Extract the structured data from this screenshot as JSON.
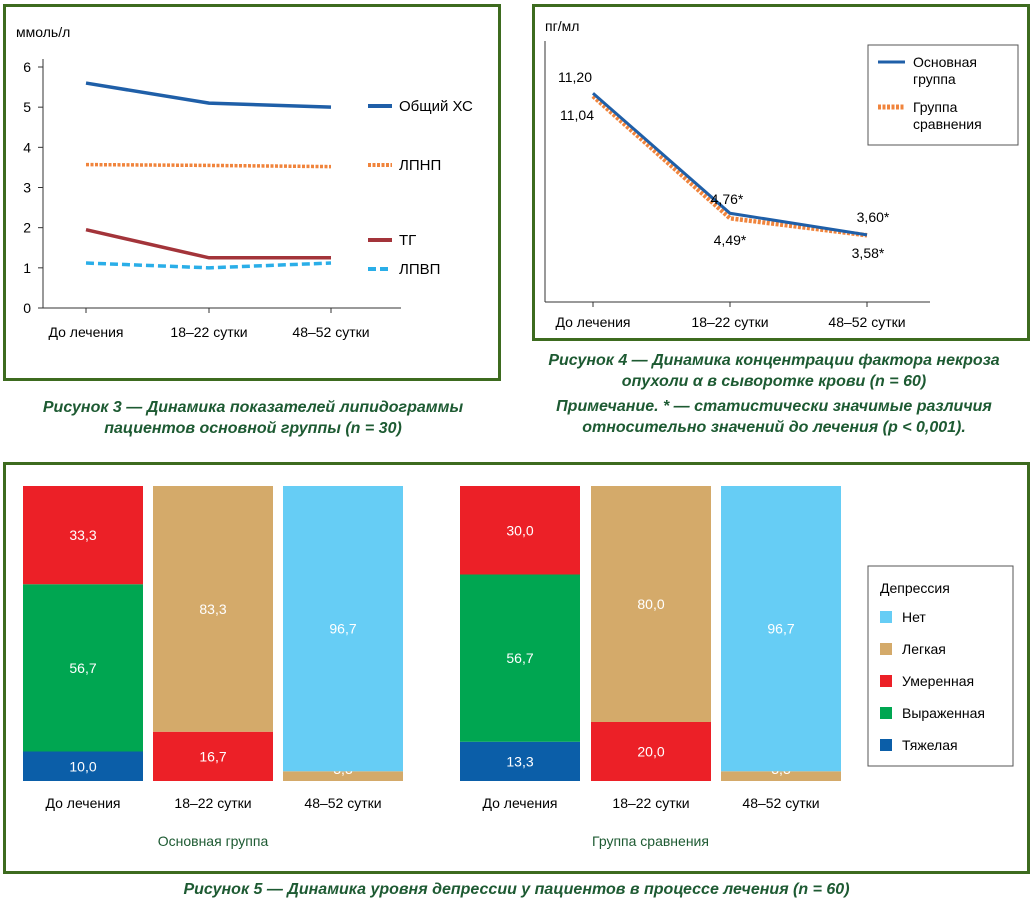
{
  "colors": {
    "frame": "#3d6b1f",
    "caption": "#1d5a32",
    "obshchiy_hs": "#1f5fa8",
    "lpnp": "#f0843c",
    "tg": "#a3343a",
    "lpvp": "#2aaee8",
    "net": "#66cdf5",
    "legkaya": "#d4aa6a",
    "umerennaya": "#ec2027",
    "vyrazhennaya": "#00a651",
    "tyazhelaya": "#0b5ea8"
  },
  "figure3": {
    "caption": "Рисунок 3 — Динамика показателей липидограммы пациентов основной группы (n = 30)",
    "chart_data": {
      "type": "line",
      "title": "",
      "ylabel": "ммоль/л",
      "xlabel": "",
      "categories": [
        "До лечения",
        "18–22 сутки",
        "48–52 сутки"
      ],
      "yticks": [
        "0",
        "1",
        "2",
        "3",
        "4",
        "5",
        "6"
      ],
      "ylim": [
        0,
        6
      ],
      "grid": false,
      "legend": "right",
      "series": [
        {
          "name": "Общий ХС",
          "values": [
            5.6,
            5.1,
            5.0
          ],
          "color": "#1f5fa8",
          "style": "solid"
        },
        {
          "name": "ЛПНП",
          "values": [
            3.57,
            3.55,
            3.52
          ],
          "color": "#f0843c",
          "style": "dotted"
        },
        {
          "name": "ТГ",
          "values": [
            1.95,
            1.25,
            1.25
          ],
          "color": "#a3343a",
          "style": "solid"
        },
        {
          "name": "ЛПВП",
          "values": [
            1.12,
            1.0,
            1.12
          ],
          "color": "#2aaee8",
          "style": "dashed"
        }
      ]
    }
  },
  "figure4": {
    "caption": "Рисунок 4 — Динамика концентрации фактора некроза опухоли α в сыворотке крови (n = 60)",
    "note": "Примечание. * — статистически значимые различия относительно значений до лечения (p < 0,001).",
    "chart_data": {
      "type": "line",
      "title": "",
      "ylabel": "пг/мл",
      "xlabel": "",
      "categories": [
        "До лечения",
        "18–22 сутки",
        "48–52 сутки"
      ],
      "ylim": [
        0,
        12.5
      ],
      "grid": false,
      "legend": "top-right",
      "series": [
        {
          "name": "Основная группа",
          "name_lines": [
            "Основная",
            "группа"
          ],
          "values": [
            11.2,
            4.76,
            3.6
          ],
          "labels": [
            "11,20",
            "4,76*",
            "3,60*"
          ],
          "color": "#1f5fa8",
          "style": "solid"
        },
        {
          "name": "Группа сравнения",
          "name_lines": [
            "Группа",
            "сравнения"
          ],
          "values": [
            11.04,
            4.49,
            3.58
          ],
          "labels": [
            "11,04",
            "4,49*",
            "3,58*"
          ],
          "color": "#f0843c",
          "style": "dotted"
        }
      ]
    }
  },
  "figure5": {
    "caption": "Рисунок 5 — Динамика уровня депрессии у пациентов в процессе лечения (n = 60)",
    "legend_title": "Депрессия",
    "chart_data": {
      "type": "bar",
      "stacked": true,
      "title": "",
      "legend": "right",
      "levels": [
        {
          "name": "Нет",
          "color": "#66cdf5"
        },
        {
          "name": "Легкая",
          "color": "#d4aa6a"
        },
        {
          "name": "Умеренная",
          "color": "#ec2027"
        },
        {
          "name": "Выраженная",
          "color": "#00a651"
        },
        {
          "name": "Тяжелая",
          "color": "#0b5ea8"
        }
      ],
      "groups": [
        {
          "name": "Основная группа",
          "bars": [
            {
              "category": "До лечения",
              "segments": [
                {
                  "level": "Тяжелая",
                  "value": 10.0,
                  "label": "10,0"
                },
                {
                  "level": "Выраженная",
                  "value": 56.7,
                  "label": "56,7"
                },
                {
                  "level": "Умеренная",
                  "value": 33.3,
                  "label": "33,3"
                }
              ]
            },
            {
              "category": "18–22 сутки",
              "segments": [
                {
                  "level": "Умеренная",
                  "value": 16.7,
                  "label": "16,7"
                },
                {
                  "level": "Легкая",
                  "value": 83.3,
                  "label": "83,3"
                }
              ]
            },
            {
              "category": "48–52 сутки",
              "segments": [
                {
                  "level": "Легкая",
                  "value": 3.3,
                  "label": "3,3"
                },
                {
                  "level": "Нет",
                  "value": 96.7,
                  "label": "96,7"
                }
              ]
            }
          ]
        },
        {
          "name": "Группа сравнения",
          "bars": [
            {
              "category": "До лечения",
              "segments": [
                {
                  "level": "Тяжелая",
                  "value": 13.3,
                  "label": "13,3"
                },
                {
                  "level": "Выраженная",
                  "value": 56.7,
                  "label": "56,7"
                },
                {
                  "level": "Умеренная",
                  "value": 30.0,
                  "label": "30,0"
                }
              ]
            },
            {
              "category": "18–22 сутки",
              "segments": [
                {
                  "level": "Умеренная",
                  "value": 20.0,
                  "label": "20,0"
                },
                {
                  "level": "Легкая",
                  "value": 80.0,
                  "label": "80,0"
                }
              ]
            },
            {
              "category": "48–52 сутки",
              "segments": [
                {
                  "level": "Легкая",
                  "value": 3.3,
                  "label": "3,3"
                },
                {
                  "level": "Нет",
                  "value": 96.7,
                  "label": "96,7"
                }
              ]
            }
          ]
        }
      ]
    }
  }
}
